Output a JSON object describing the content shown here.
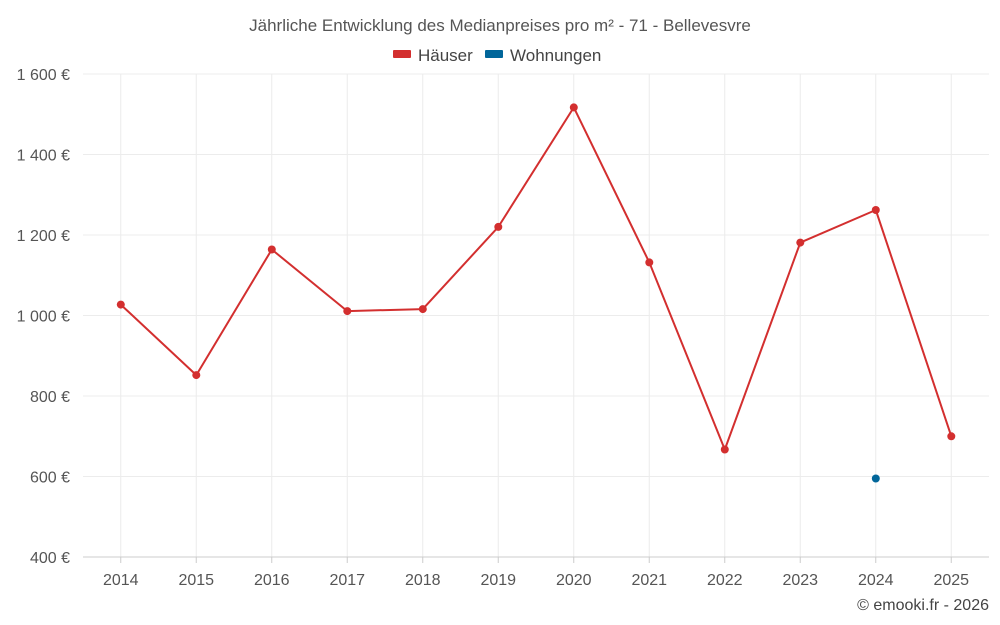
{
  "chart_data": {
    "type": "line",
    "title": "Jährliche Entwicklung des Medianpreises pro m² - 71 - Bellevesvre",
    "x": [
      "2014",
      "2015",
      "2016",
      "2017",
      "2018",
      "2019",
      "2020",
      "2021",
      "2022",
      "2023",
      "2024",
      "2025"
    ],
    "series": [
      {
        "name": "Häuser",
        "color": "#d32f2f",
        "values": [
          1027,
          852,
          1164,
          1011,
          1016,
          1220,
          1517,
          1132,
          667,
          1181,
          1262,
          700
        ]
      },
      {
        "name": "Wohnungen",
        "color": "#01669a",
        "values": [
          null,
          null,
          null,
          null,
          null,
          null,
          null,
          null,
          null,
          null,
          595,
          null
        ]
      }
    ],
    "ylim": [
      400,
      1600
    ],
    "yticks": [
      400,
      600,
      800,
      1000,
      1200,
      1400,
      1600
    ],
    "ytick_labels": [
      "400 €",
      "600 €",
      "800 €",
      "1 000 €",
      "1 200 €",
      "1 400 €",
      "1 600 €"
    ],
    "grid": true,
    "legend": "top-center"
  },
  "copyright": "© emooki.fr - 2026"
}
